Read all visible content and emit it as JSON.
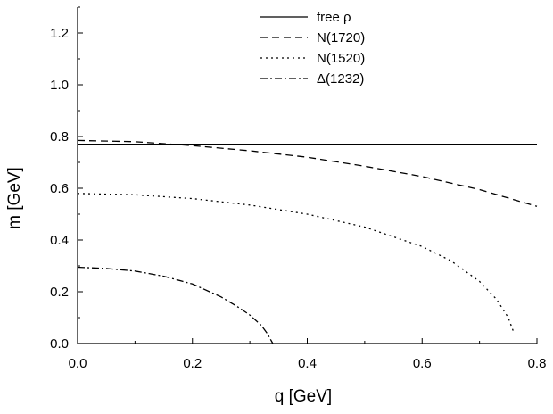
{
  "chart_data": {
    "type": "line",
    "title": "",
    "xlabel": "q [GeV]",
    "ylabel": "m [GeV]",
    "xlim": [
      0.0,
      0.8
    ],
    "ylim": [
      0.0,
      1.3
    ],
    "xticks": [
      {
        "value": 0.0,
        "label": "0.0"
      },
      {
        "value": 0.2,
        "label": "0.2"
      },
      {
        "value": 0.4,
        "label": "0.4"
      },
      {
        "value": 0.6,
        "label": "0.6"
      },
      {
        "value": 0.8,
        "label": "0.8"
      }
    ],
    "yticks": [
      {
        "value": 0.0,
        "label": "0.0"
      },
      {
        "value": 0.2,
        "label": "0.2"
      },
      {
        "value": 0.4,
        "label": "0.4"
      },
      {
        "value": 0.6,
        "label": "0.6"
      },
      {
        "value": 0.8,
        "label": "0.8"
      },
      {
        "value": 1.0,
        "label": "1.0"
      },
      {
        "value": 1.2,
        "label": "1.2"
      }
    ],
    "grid": false,
    "legend_position": "top-right",
    "series": [
      {
        "name": "free ρ",
        "style": "solid",
        "x": [
          0.0,
          0.8
        ],
        "y": [
          0.77,
          0.77
        ]
      },
      {
        "name": "N(1720)",
        "style": "dashed",
        "x": [
          0.0,
          0.1,
          0.2,
          0.3,
          0.4,
          0.5,
          0.6,
          0.7,
          0.8
        ],
        "y": [
          0.785,
          0.78,
          0.765,
          0.745,
          0.72,
          0.685,
          0.645,
          0.595,
          0.53
        ]
      },
      {
        "name": "N(1520)",
        "style": "dotted",
        "x": [
          0.0,
          0.1,
          0.2,
          0.3,
          0.4,
          0.5,
          0.6,
          0.65,
          0.7,
          0.73,
          0.75,
          0.76
        ],
        "y": [
          0.58,
          0.575,
          0.56,
          0.535,
          0.5,
          0.45,
          0.375,
          0.32,
          0.24,
          0.17,
          0.1,
          0.04
        ]
      },
      {
        "name": "Δ(1232)",
        "style": "dashdot",
        "x": [
          0.0,
          0.05,
          0.1,
          0.15,
          0.2,
          0.25,
          0.28,
          0.3,
          0.32,
          0.33,
          0.34
        ],
        "y": [
          0.295,
          0.29,
          0.28,
          0.26,
          0.23,
          0.18,
          0.14,
          0.11,
          0.07,
          0.04,
          0.0
        ]
      }
    ]
  }
}
